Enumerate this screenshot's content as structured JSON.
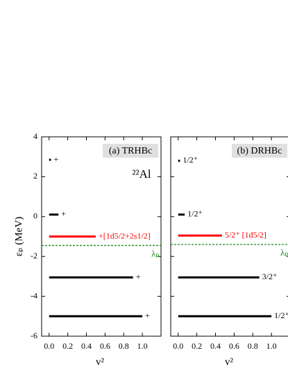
{
  "chart_data": [
    {
      "type": "levels",
      "title": "(a) TRHBc",
      "annotation": "²²Al",
      "xlabel": "v²",
      "ylabel": "εₚ (MeV)",
      "xlim": [
        -0.08,
        1.2
      ],
      "ylim": [
        -6,
        4
      ],
      "xticks": [
        {
          "value": 0,
          "label": "0.0"
        },
        {
          "value": 0.2,
          "label": "0.2"
        },
        {
          "value": 0.4,
          "label": "0.4"
        },
        {
          "value": 0.6,
          "label": "0.6"
        },
        {
          "value": 0.8,
          "label": "0.8"
        },
        {
          "value": 1,
          "label": "1.0"
        }
      ],
      "yticks": [
        -6,
        -4,
        -2,
        0,
        2,
        4
      ],
      "levels": {
        "energies": [
          2.85,
          0.1,
          -1.0,
          -3.05,
          -5.0
        ],
        "occupations": [
          0.02,
          0.1,
          0.5,
          0.9,
          1.0
        ],
        "labels": [
          "+",
          "+",
          "+[1d5/2+2s1/2]",
          "+",
          "+"
        ],
        "colors": [
          "#000000",
          "#000000",
          "#ff0000",
          "#000000",
          "#000000"
        ]
      },
      "fermi": {
        "value": -1.45,
        "label": "λₚ",
        "color": "#1a8a1a"
      }
    },
    {
      "type": "levels",
      "title": "(b) DRHBc",
      "xlabel": "v²",
      "xlim": [
        -0.08,
        1.2
      ],
      "ylim": [
        -6,
        4
      ],
      "xticks": [
        {
          "value": 0,
          "label": "0.0"
        },
        {
          "value": 0.2,
          "label": "0.2"
        },
        {
          "value": 0.4,
          "label": "0.4"
        },
        {
          "value": 0.6,
          "label": "0.6"
        },
        {
          "value": 0.8,
          "label": "0.8"
        },
        {
          "value": 1,
          "label": "1.0"
        }
      ],
      "yticks": [
        -6,
        -4,
        -2,
        0,
        2,
        4
      ],
      "levels": {
        "energies": [
          2.8,
          0.1,
          -0.95,
          -3.05,
          -5.0
        ],
        "occupations": [
          0.02,
          0.07,
          0.47,
          0.87,
          1.0
        ],
        "labels": [
          "1/2⁺",
          "1/2⁺",
          "5/2⁺ [1d5/2]",
          "3/2⁺",
          "1/2⁺"
        ],
        "colors": [
          "#000000",
          "#000000",
          "#ff0000",
          "#000000",
          "#000000"
        ]
      },
      "fermi": {
        "value": -1.4,
        "label": "λₚ",
        "color": "#1a8a1a"
      }
    }
  ]
}
